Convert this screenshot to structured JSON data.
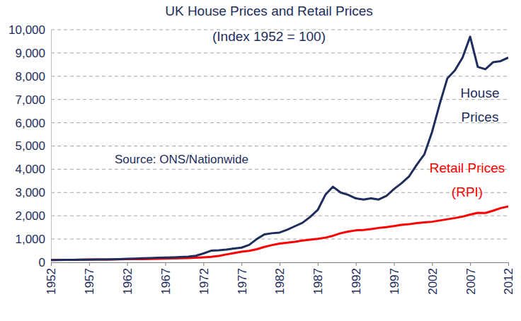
{
  "chart_data": {
    "type": "line",
    "title": "UK House Prices and Retail Prices",
    "subtitle": "(Index 1952 = 100)",
    "annotation": "Source: ONS/Nationwide",
    "x": [
      1952,
      1953,
      1954,
      1955,
      1956,
      1957,
      1958,
      1959,
      1960,
      1961,
      1962,
      1963,
      1964,
      1965,
      1966,
      1967,
      1968,
      1969,
      1970,
      1971,
      1972,
      1973,
      1974,
      1975,
      1976,
      1977,
      1978,
      1979,
      1980,
      1981,
      1982,
      1983,
      1984,
      1985,
      1986,
      1987,
      1988,
      1989,
      1990,
      1991,
      1992,
      1993,
      1994,
      1995,
      1996,
      1997,
      1998,
      1999,
      2000,
      2001,
      2002,
      2003,
      2004,
      2005,
      2006,
      2007,
      2008,
      2009,
      2010,
      2011,
      2012
    ],
    "series": [
      {
        "name": "House Prices",
        "color": "#1f2d5c",
        "values": [
          100,
          102,
          104,
          108,
          112,
          116,
          118,
          122,
          130,
          140,
          150,
          160,
          175,
          185,
          195,
          205,
          215,
          225,
          240,
          280,
          380,
          500,
          520,
          550,
          590,
          630,
          750,
          1000,
          1200,
          1250,
          1280,
          1400,
          1550,
          1700,
          1950,
          2250,
          2900,
          3250,
          3000,
          2900,
          2750,
          2700,
          2750,
          2700,
          2850,
          3150,
          3400,
          3700,
          4200,
          4650,
          5600,
          6800,
          7900,
          8250,
          8800,
          9700,
          8400,
          8300,
          8600,
          8650,
          8800
        ]
      },
      {
        "name": "Retail Prices (RPI)",
        "color": "#ff0000",
        "values": [
          100,
          103,
          105,
          109,
          114,
          118,
          121,
          122,
          123,
          127,
          133,
          136,
          140,
          147,
          152,
          156,
          164,
          172,
          183,
          200,
          215,
          235,
          272,
          338,
          394,
          457,
          495,
          561,
          662,
          741,
          805,
          842,
          884,
          937,
          970,
          1010,
          1060,
          1142,
          1250,
          1323,
          1372,
          1394,
          1428,
          1478,
          1513,
          1560,
          1612,
          1638,
          1686,
          1716,
          1744,
          1797,
          1850,
          1903,
          1964,
          2050,
          2130,
          2120,
          2220,
          2330,
          2400
        ]
      }
    ],
    "xlim": [
      1952,
      2012
    ],
    "xticks": [
      1952,
      1957,
      1962,
      1967,
      1972,
      1977,
      1982,
      1987,
      1992,
      1997,
      2002,
      2007,
      2012
    ],
    "ylim": [
      0,
      10000
    ],
    "yticks": [
      0,
      {
        "value": 1000,
        "label": "1,000"
      },
      {
        "value": 2000,
        "label": "2,000"
      },
      {
        "value": 3000,
        "label": "3,000"
      },
      {
        "value": 4000,
        "label": "4,000"
      },
      {
        "value": 5000,
        "label": "5,000"
      },
      {
        "value": 6000,
        "label": "6,000"
      },
      {
        "value": 7000,
        "label": "7,000"
      },
      {
        "value": 8000,
        "label": "8,000"
      },
      {
        "value": 9000,
        "label": "9,000"
      },
      {
        "value": 10000,
        "label": "10,000"
      }
    ],
    "grid": true
  }
}
